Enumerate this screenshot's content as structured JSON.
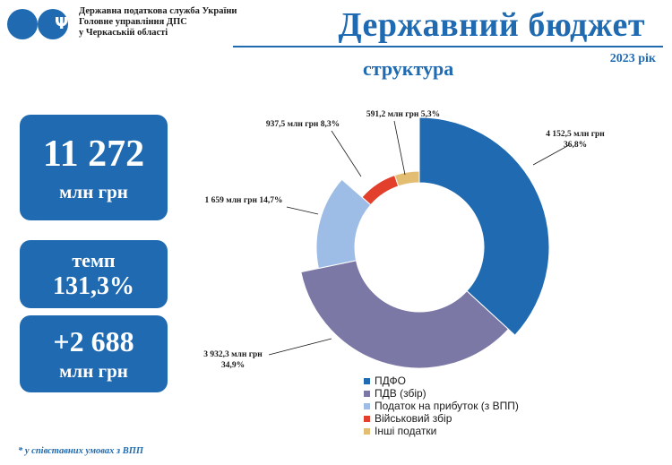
{
  "header": {
    "org_lines": [
      "Державна податкова служба України",
      "Головне управління ДПС",
      "у Черкаській області"
    ],
    "title": "Державний бюджет",
    "year": "2023 рік",
    "subtitle": "структура"
  },
  "stats": {
    "total_value": "11 272",
    "total_unit": "млн грн",
    "growth_label": "темп",
    "growth_value": "131,3%",
    "increase_value": "+2 688",
    "increase_unit": "млн грн"
  },
  "footnote": "* у співставних умовах з ВПП",
  "colors": {
    "accent": "#1f6ab1"
  },
  "chart_data": {
    "type": "pie",
    "variant": "donut",
    "series": [
      {
        "name": "ПДФО",
        "value": 4152.5,
        "percent": 36.8,
        "label": [
          "4 152,5 млн грн",
          "36,8%"
        ],
        "color": "#1f6ab1"
      },
      {
        "name": "ПДВ (збір)",
        "value": 3932.3,
        "percent": 34.9,
        "label": [
          "3 932,3 млн грн",
          "34,9%"
        ],
        "color": "#7b78a6"
      },
      {
        "name": "Податок на прибуток (з ВПП)",
        "value": 1659,
        "percent": 14.7,
        "label": [
          "1 659 млн грн 14,7%"
        ],
        "color": "#9dbde6"
      },
      {
        "name": "Військовий збір",
        "value": 937.5,
        "percent": 8.3,
        "label": [
          "937,5 млн грн 8,3%"
        ],
        "color": "#e23f2c"
      },
      {
        "name": "Інші податки",
        "value": 591.2,
        "percent": 5.3,
        "label": [
          "591,2 млн грн 5,3%"
        ],
        "color": "#e3bd72"
      }
    ],
    "legend_position": "bottom-right"
  }
}
